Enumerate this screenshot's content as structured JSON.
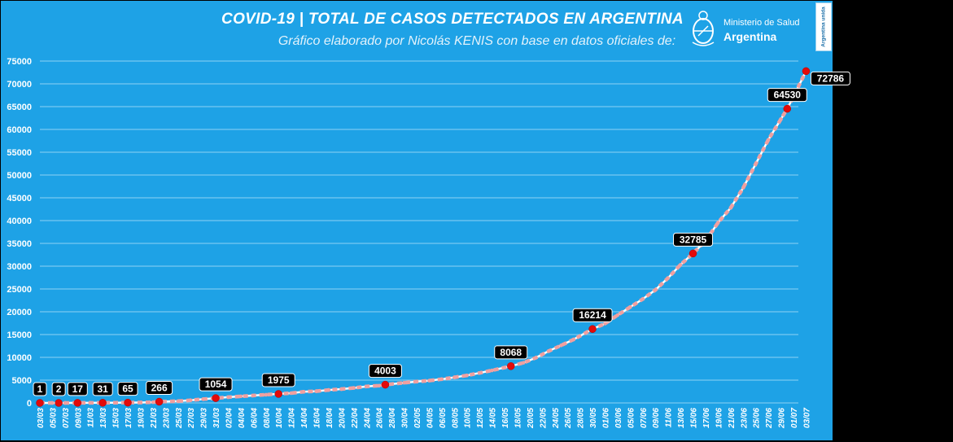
{
  "header": {
    "title": "COVID-19  |  TOTAL DE CASOS DETECTADOS EN ARGENTINA",
    "subtitle": "Gráfico elaborado por Nicolás KENIS con base en datos oficiales de:"
  },
  "logo": {
    "line1": "Ministerio de Salud",
    "line2": "Argentina",
    "seal_icon": "argentina-coat-of-arms-icon"
  },
  "badge": {
    "text": "Argentina unida"
  },
  "colors": {
    "background": "#1ea2e6",
    "grid": "#8fd3f4",
    "line": "#f0a0a0",
    "marker": "#e30a0a",
    "label_bg": "#000000",
    "text": "#ffffff"
  },
  "chart_data": {
    "type": "line",
    "title": "COVID-19  |  TOTAL DE CASOS DETECTADOS EN ARGENTINA",
    "xlabel": "",
    "ylabel": "",
    "ylim": [
      0,
      75000
    ],
    "yticks": [
      0,
      5000,
      10000,
      15000,
      20000,
      25000,
      30000,
      35000,
      40000,
      45000,
      50000,
      55000,
      60000,
      65000,
      70000,
      75000
    ],
    "grid": true,
    "legend": "none",
    "x_range": [
      "03/03",
      "01/07"
    ],
    "x_tick_labels": [
      "03/03",
      "05/03",
      "07/03",
      "09/03",
      "11/03",
      "13/03",
      "15/03",
      "17/03",
      "19/03",
      "21/03",
      "23/03",
      "25/03",
      "27/03",
      "29/03",
      "31/03",
      "02/04",
      "04/04",
      "06/04",
      "08/04",
      "10/04",
      "12/04",
      "14/04",
      "16/04",
      "18/04",
      "20/04",
      "22/04",
      "24/04",
      "26/04",
      "28/04",
      "30/04",
      "02/05",
      "04/05",
      "06/05",
      "08/05",
      "10/05",
      "12/05",
      "14/05",
      "16/05",
      "18/05",
      "20/05",
      "22/05",
      "24/05",
      "26/05",
      "28/05",
      "30/05",
      "01/06",
      "03/06",
      "05/06",
      "07/06",
      "09/06",
      "11/06",
      "13/06",
      "15/06",
      "17/06",
      "19/06",
      "21/06",
      "23/06",
      "25/06",
      "27/06",
      "29/06",
      "01/07",
      "03/07"
    ],
    "points": [
      {
        "x": "03/03",
        "y": 1
      },
      {
        "x": "05/03",
        "y": 1
      },
      {
        "x": "06/03",
        "y": 2
      },
      {
        "x": "07/03",
        "y": 8
      },
      {
        "x": "09/03",
        "y": 17
      },
      {
        "x": "11/03",
        "y": 21
      },
      {
        "x": "13/03",
        "y": 31
      },
      {
        "x": "15/03",
        "y": 45
      },
      {
        "x": "17/03",
        "y": 65
      },
      {
        "x": "19/03",
        "y": 97
      },
      {
        "x": "21/03",
        "y": 158
      },
      {
        "x": "22/03",
        "y": 266
      },
      {
        "x": "25/03",
        "y": 387
      },
      {
        "x": "27/03",
        "y": 589
      },
      {
        "x": "29/03",
        "y": 820
      },
      {
        "x": "31/03",
        "y": 1054
      },
      {
        "x": "02/04",
        "y": 1265
      },
      {
        "x": "04/04",
        "y": 1451
      },
      {
        "x": "06/04",
        "y": 1628
      },
      {
        "x": "08/04",
        "y": 1795
      },
      {
        "x": "10/04",
        "y": 1975
      },
      {
        "x": "12/04",
        "y": 2142
      },
      {
        "x": "14/04",
        "y": 2443
      },
      {
        "x": "16/04",
        "y": 2571
      },
      {
        "x": "18/04",
        "y": 2839
      },
      {
        "x": "20/04",
        "y": 3031
      },
      {
        "x": "22/04",
        "y": 3288
      },
      {
        "x": "24/04",
        "y": 3607
      },
      {
        "x": "26/04",
        "y": 3780
      },
      {
        "x": "27/04",
        "y": 4003
      },
      {
        "x": "30/04",
        "y": 4428
      },
      {
        "x": "02/05",
        "y": 4681
      },
      {
        "x": "04/05",
        "y": 4887
      },
      {
        "x": "06/05",
        "y": 5208
      },
      {
        "x": "08/05",
        "y": 5611
      },
      {
        "x": "10/05",
        "y": 6034
      },
      {
        "x": "12/05",
        "y": 6563
      },
      {
        "x": "14/05",
        "y": 7134
      },
      {
        "x": "17/05",
        "y": 8068
      },
      {
        "x": "19/05",
        "y": 8809
      },
      {
        "x": "21/05",
        "y": 9931
      },
      {
        "x": "23/05",
        "y": 11353
      },
      {
        "x": "25/05",
        "y": 12628
      },
      {
        "x": "27/05",
        "y": 13933
      },
      {
        "x": "30/05",
        "y": 16214
      },
      {
        "x": "01/06",
        "y": 17415
      },
      {
        "x": "03/06",
        "y": 19268
      },
      {
        "x": "05/06",
        "y": 21037
      },
      {
        "x": "07/06",
        "y": 22794
      },
      {
        "x": "09/06",
        "y": 24761
      },
      {
        "x": "11/06",
        "y": 27373
      },
      {
        "x": "13/06",
        "y": 30295
      },
      {
        "x": "15/06",
        "y": 32785
      },
      {
        "x": "17/06",
        "y": 35552
      },
      {
        "x": "19/06",
        "y": 39570
      },
      {
        "x": "21/06",
        "y": 42785
      },
      {
        "x": "23/06",
        "y": 47216
      },
      {
        "x": "25/06",
        "y": 52457
      },
      {
        "x": "27/06",
        "y": 57731
      },
      {
        "x": "29/06",
        "y": 62268
      },
      {
        "x": "30/06",
        "y": 64530
      },
      {
        "x": "01/07",
        "y": 67197
      },
      {
        "x": "03/07",
        "y": 72786
      }
    ],
    "labeled_points": [
      {
        "x": "03/03",
        "y": 1,
        "label": "1"
      },
      {
        "x": "06/03",
        "y": 2,
        "label": "2"
      },
      {
        "x": "09/03",
        "y": 17,
        "label": "17"
      },
      {
        "x": "13/03",
        "y": 31,
        "label": "31"
      },
      {
        "x": "17/03",
        "y": 65,
        "label": "65"
      },
      {
        "x": "22/03",
        "y": 266,
        "label": "266"
      },
      {
        "x": "31/03",
        "y": 1054,
        "label": "1054"
      },
      {
        "x": "10/04",
        "y": 1975,
        "label": "1975"
      },
      {
        "x": "27/04",
        "y": 4003,
        "label": "4003"
      },
      {
        "x": "17/05",
        "y": 8068,
        "label": "8068"
      },
      {
        "x": "30/05",
        "y": 16214,
        "label": "16214"
      },
      {
        "x": "15/06",
        "y": 32785,
        "label": "32785"
      },
      {
        "x": "30/06",
        "y": 64530,
        "label": "64530"
      },
      {
        "x": "03/07",
        "y": 72786,
        "label": "72786"
      }
    ]
  }
}
